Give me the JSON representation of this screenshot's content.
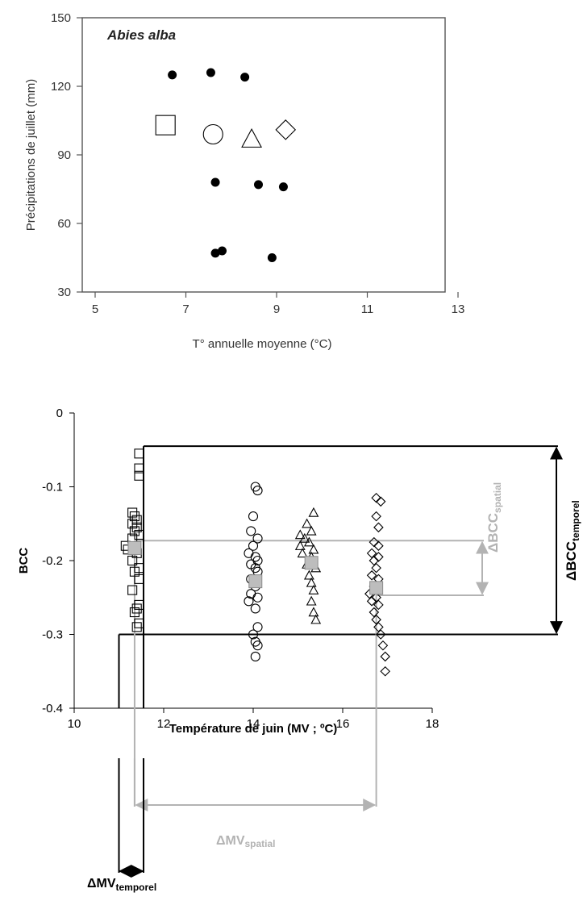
{
  "chart_data": [
    {
      "type": "scatter",
      "title": "Abies alba",
      "xlabel": "T° annuelle moyenne (°C)",
      "ylabel": "Précipitations de juillet (mm)",
      "xlim": [
        5,
        13
      ],
      "ylim": [
        30,
        150
      ],
      "xticks": [
        "5",
        "7",
        "9",
        "11",
        "13"
      ],
      "yticks": [
        "30",
        "60",
        "90",
        "120",
        "150"
      ],
      "grid": false,
      "series": [
        {
          "marker": "filled-circle",
          "points": [
            {
              "x": 6.7,
              "y": 125
            },
            {
              "x": 7.55,
              "y": 126
            },
            {
              "x": 8.3,
              "y": 124
            },
            {
              "x": 7.65,
              "y": 78
            },
            {
              "x": 8.6,
              "y": 77
            },
            {
              "x": 9.15,
              "y": 76
            },
            {
              "x": 7.65,
              "y": 47
            },
            {
              "x": 7.8,
              "y": 48
            },
            {
              "x": 8.9,
              "y": 45
            }
          ]
        },
        {
          "marker": "open-square",
          "points": [
            {
              "x": 6.55,
              "y": 103
            }
          ]
        },
        {
          "marker": "open-circle",
          "points": [
            {
              "x": 7.6,
              "y": 99
            }
          ]
        },
        {
          "marker": "open-triangle",
          "points": [
            {
              "x": 8.45,
              "y": 97
            }
          ]
        },
        {
          "marker": "open-diamond",
          "points": [
            {
              "x": 9.2,
              "y": 101
            }
          ]
        }
      ]
    },
    {
      "type": "scatter",
      "xlabel": "Température de juin (MV ; ºC)",
      "ylabel": "BCC",
      "xlim": [
        10,
        18
      ],
      "ylim": [
        -0.4,
        0
      ],
      "xticks": [
        "10",
        "12",
        "14",
        "16",
        "18"
      ],
      "yticks": [
        "0",
        "-0.1",
        "-0.2",
        "-0.3",
        "-0.4"
      ],
      "grid": false,
      "series": [
        {
          "marker": "open-square",
          "points": [
            {
              "x": 11.45,
              "y": -0.055
            },
            {
              "x": 11.45,
              "y": -0.075
            },
            {
              "x": 11.45,
              "y": -0.085
            },
            {
              "x": 11.3,
              "y": -0.135
            },
            {
              "x": 11.35,
              "y": -0.14
            },
            {
              "x": 11.4,
              "y": -0.145
            },
            {
              "x": 11.3,
              "y": -0.15
            },
            {
              "x": 11.4,
              "y": -0.155
            },
            {
              "x": 11.35,
              "y": -0.16
            },
            {
              "x": 11.45,
              "y": -0.165
            },
            {
              "x": 11.3,
              "y": -0.17
            },
            {
              "x": 11.15,
              "y": -0.18
            },
            {
              "x": 11.2,
              "y": -0.185
            },
            {
              "x": 11.4,
              "y": -0.19
            },
            {
              "x": 11.3,
              "y": -0.2
            },
            {
              "x": 11.45,
              "y": -0.21
            },
            {
              "x": 11.35,
              "y": -0.215
            },
            {
              "x": 11.45,
              "y": -0.225
            },
            {
              "x": 11.3,
              "y": -0.24
            },
            {
              "x": 11.45,
              "y": -0.26
            },
            {
              "x": 11.4,
              "y": -0.265
            },
            {
              "x": 11.35,
              "y": -0.27
            },
            {
              "x": 11.45,
              "y": -0.285
            },
            {
              "x": 11.4,
              "y": -0.29
            }
          ]
        },
        {
          "marker": "open-circle",
          "points": [
            {
              "x": 14.05,
              "y": -0.1
            },
            {
              "x": 14.1,
              "y": -0.105
            },
            {
              "x": 14.0,
              "y": -0.14
            },
            {
              "x": 13.95,
              "y": -0.16
            },
            {
              "x": 14.1,
              "y": -0.17
            },
            {
              "x": 14.0,
              "y": -0.18
            },
            {
              "x": 13.9,
              "y": -0.19
            },
            {
              "x": 14.05,
              "y": -0.195
            },
            {
              "x": 14.1,
              "y": -0.2
            },
            {
              "x": 13.95,
              "y": -0.205
            },
            {
              "x": 14.05,
              "y": -0.21
            },
            {
              "x": 14.1,
              "y": -0.215
            },
            {
              "x": 13.95,
              "y": -0.225
            },
            {
              "x": 14.05,
              "y": -0.235
            },
            {
              "x": 13.95,
              "y": -0.245
            },
            {
              "x": 14.1,
              "y": -0.25
            },
            {
              "x": 13.9,
              "y": -0.255
            },
            {
              "x": 14.05,
              "y": -0.265
            },
            {
              "x": 14.1,
              "y": -0.29
            },
            {
              "x": 14.0,
              "y": -0.3
            },
            {
              "x": 14.05,
              "y": -0.31
            },
            {
              "x": 14.1,
              "y": -0.315
            },
            {
              "x": 14.05,
              "y": -0.33
            }
          ]
        },
        {
          "marker": "open-triangle",
          "points": [
            {
              "x": 15.35,
              "y": -0.135
            },
            {
              "x": 15.2,
              "y": -0.15
            },
            {
              "x": 15.3,
              "y": -0.16
            },
            {
              "x": 15.05,
              "y": -0.165
            },
            {
              "x": 15.15,
              "y": -0.17
            },
            {
              "x": 15.25,
              "y": -0.175
            },
            {
              "x": 15.05,
              "y": -0.18
            },
            {
              "x": 15.35,
              "y": -0.185
            },
            {
              "x": 15.1,
              "y": -0.19
            },
            {
              "x": 15.3,
              "y": -0.195
            },
            {
              "x": 15.2,
              "y": -0.205
            },
            {
              "x": 15.4,
              "y": -0.21
            },
            {
              "x": 15.25,
              "y": -0.22
            },
            {
              "x": 15.3,
              "y": -0.23
            },
            {
              "x": 15.35,
              "y": -0.24
            },
            {
              "x": 15.3,
              "y": -0.255
            },
            {
              "x": 15.35,
              "y": -0.27
            },
            {
              "x": 15.4,
              "y": -0.28
            }
          ]
        },
        {
          "marker": "open-diamond",
          "points": [
            {
              "x": 16.75,
              "y": -0.115
            },
            {
              "x": 16.85,
              "y": -0.12
            },
            {
              "x": 16.75,
              "y": -0.14
            },
            {
              "x": 16.8,
              "y": -0.155
            },
            {
              "x": 16.7,
              "y": -0.175
            },
            {
              "x": 16.8,
              "y": -0.18
            },
            {
              "x": 16.65,
              "y": -0.19
            },
            {
              "x": 16.8,
              "y": -0.195
            },
            {
              "x": 16.7,
              "y": -0.2
            },
            {
              "x": 16.75,
              "y": -0.21
            },
            {
              "x": 16.65,
              "y": -0.22
            },
            {
              "x": 16.8,
              "y": -0.225
            },
            {
              "x": 16.7,
              "y": -0.235
            },
            {
              "x": 16.6,
              "y": -0.245
            },
            {
              "x": 16.75,
              "y": -0.25
            },
            {
              "x": 16.65,
              "y": -0.255
            },
            {
              "x": 16.8,
              "y": -0.26
            },
            {
              "x": 16.7,
              "y": -0.27
            },
            {
              "x": 16.75,
              "y": -0.28
            },
            {
              "x": 16.8,
              "y": -0.29
            },
            {
              "x": 16.85,
              "y": -0.3
            },
            {
              "x": 16.9,
              "y": -0.315
            },
            {
              "x": 16.95,
              "y": -0.33
            },
            {
              "x": 16.95,
              "y": -0.35
            }
          ]
        },
        {
          "marker": "filled-square-gray",
          "points": [
            {
              "x": 11.35,
              "y": -0.183
            },
            {
              "x": 14.05,
              "y": -0.228
            },
            {
              "x": 15.3,
              "y": -0.203
            },
            {
              "x": 16.75,
              "y": -0.237
            }
          ]
        }
      ],
      "annotations": {
        "bcc_temporel": {
          "label": "ΔBCC",
          "sub": "temporel",
          "range": [
            -0.045,
            -0.3
          ],
          "color": "#000000"
        },
        "bcc_spatial": {
          "label": "ΔBCC",
          "sub": "spatial",
          "range": [
            -0.173,
            -0.247
          ],
          "color": "#b3b3b3"
        },
        "mv_spatial": {
          "label": "ΔMV",
          "sub": "spatial",
          "range": [
            11.35,
            16.75
          ],
          "color": "#b3b3b3"
        },
        "mv_temporel": {
          "label": "ΔMV",
          "sub": "temporel",
          "range": [
            11.0,
            11.55
          ],
          "color": "#000000"
        }
      }
    }
  ]
}
